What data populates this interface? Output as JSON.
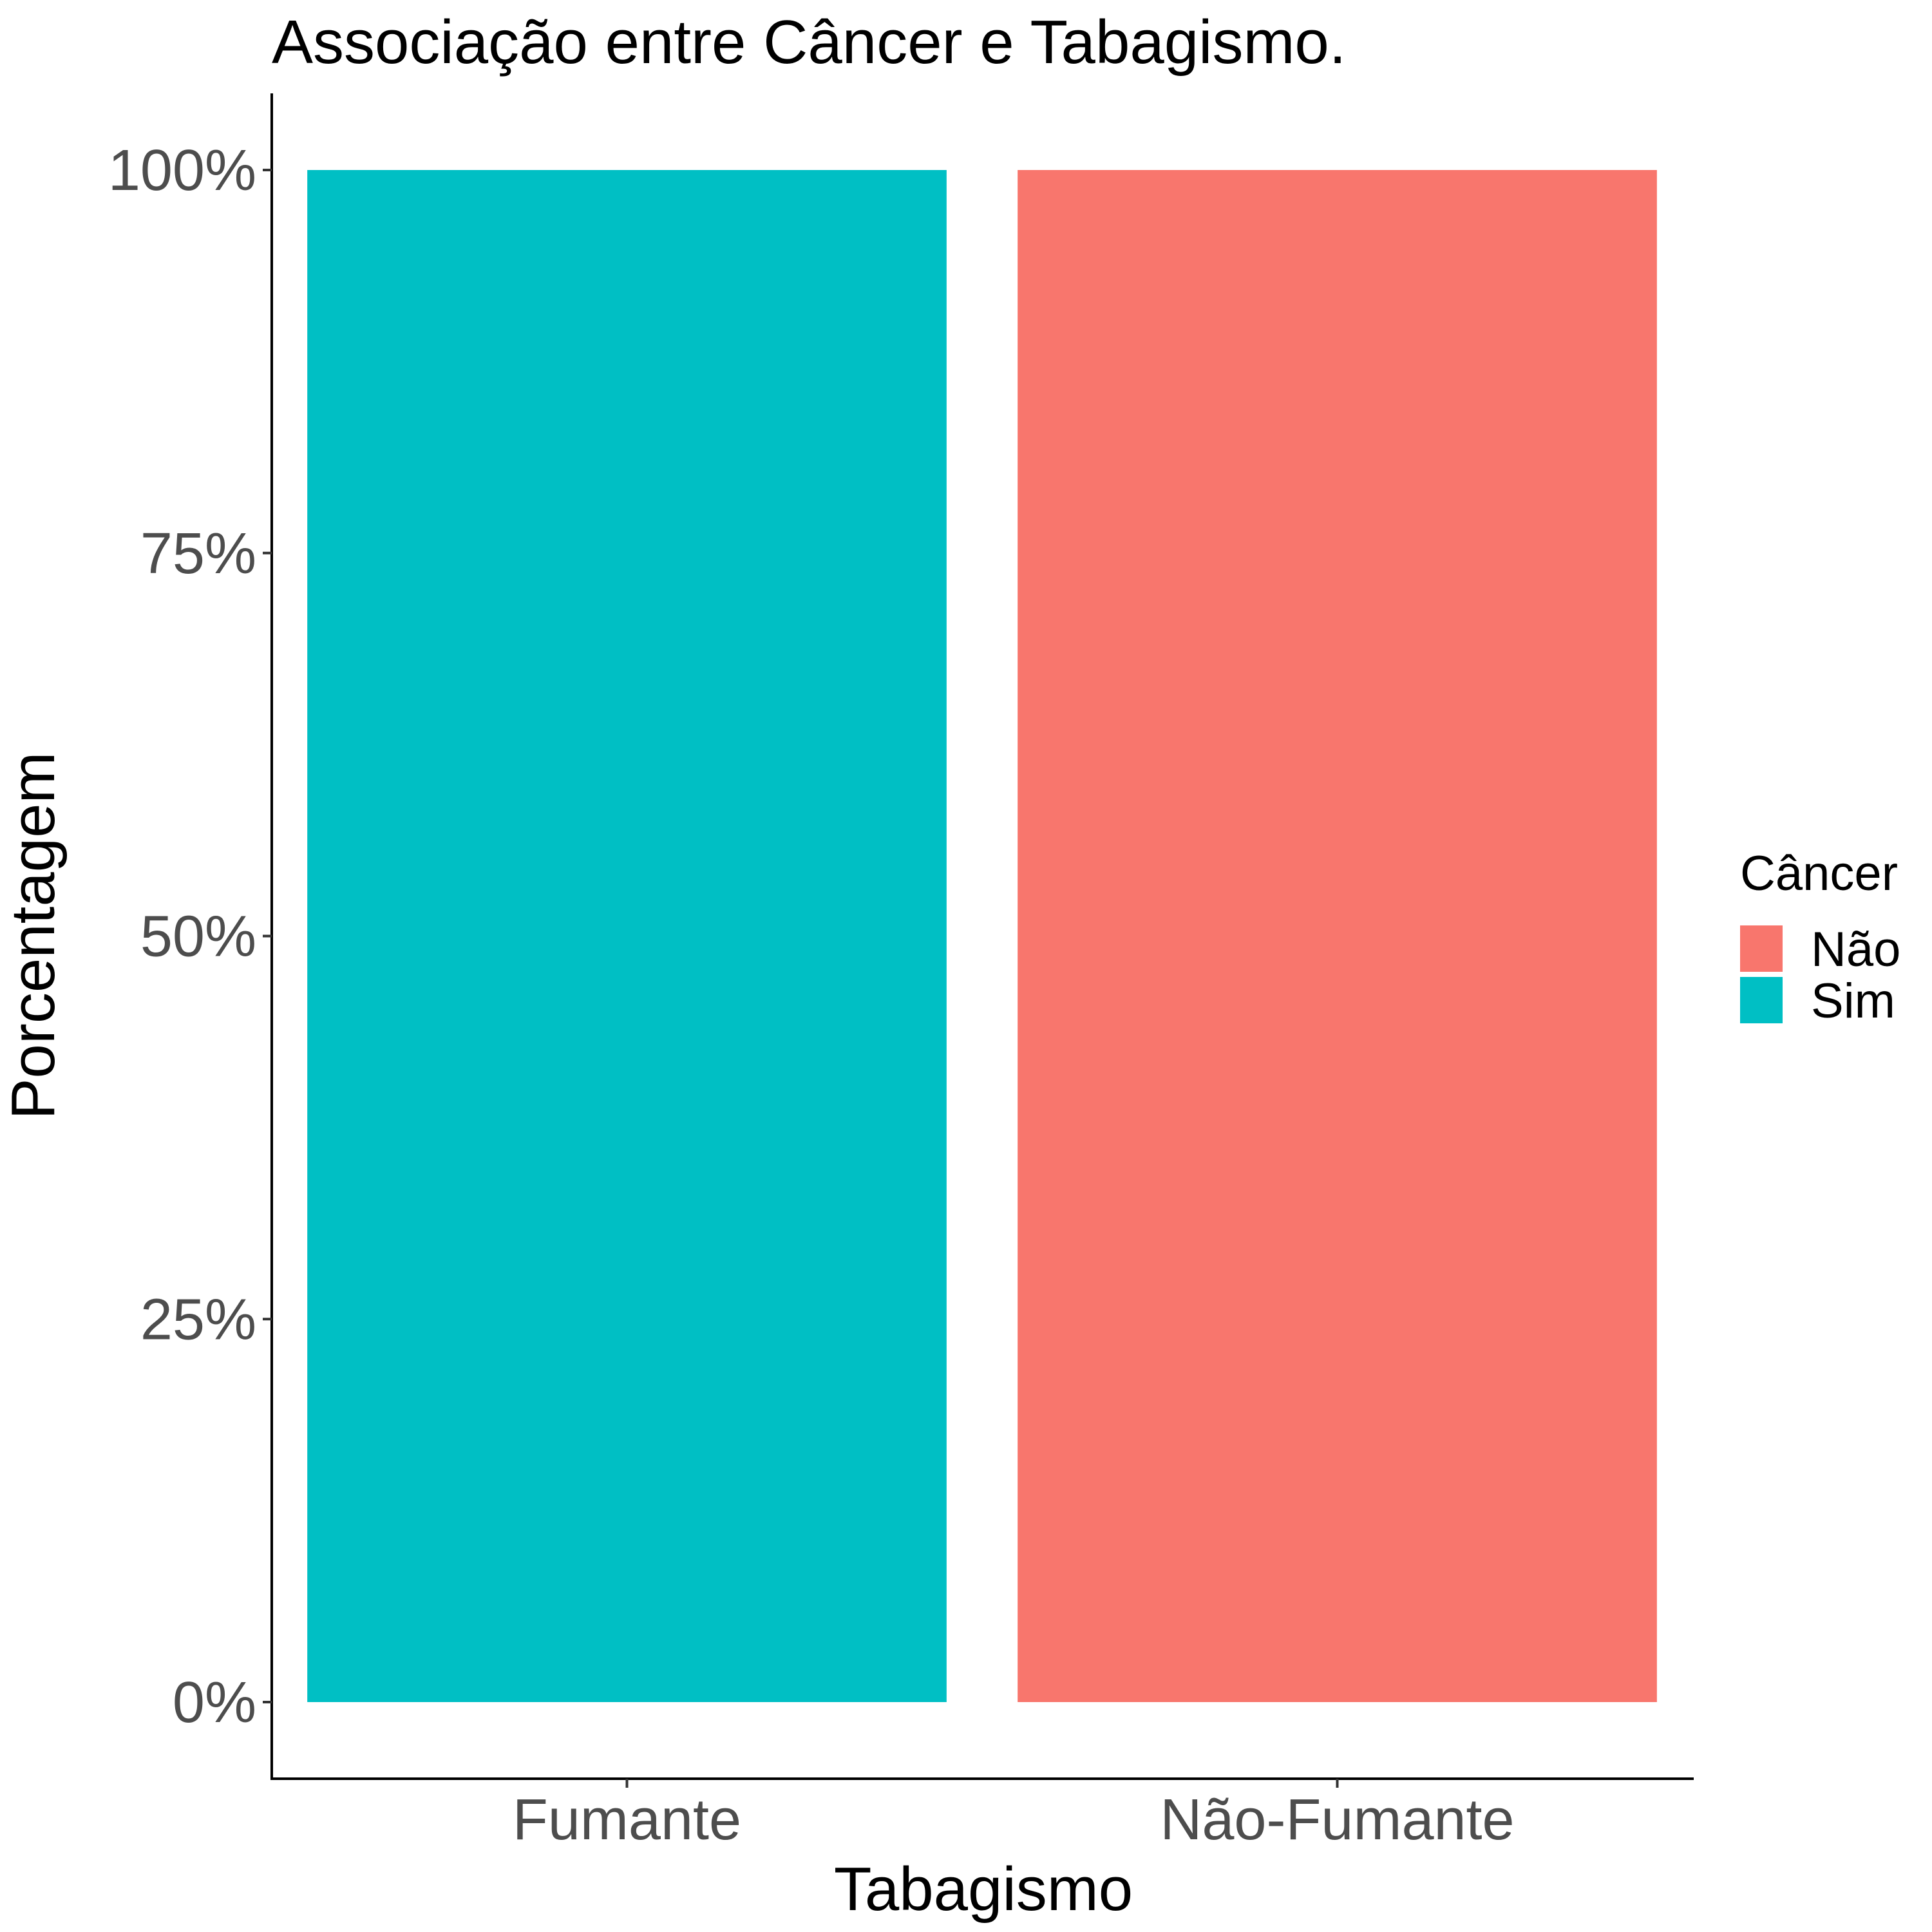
{
  "chart_data": {
    "type": "bar",
    "stacked": true,
    "title": "Associação entre Câncer e Tabagismo.",
    "xlabel": "Tabagismo",
    "ylabel": "Porcentagem",
    "categories": [
      "Fumante",
      "Não-Fumante"
    ],
    "yticks": [
      0,
      25,
      50,
      75,
      100
    ],
    "ytick_labels": [
      "0%",
      "25%",
      "50%",
      "75%",
      "100%"
    ],
    "ylim": [
      -5,
      105
    ],
    "grid": false,
    "legend": {
      "title": "Câncer",
      "position": "right",
      "entries": [
        "Não",
        "Sim"
      ]
    },
    "series": [
      {
        "name": "Não",
        "color": "#F8766D",
        "values": [
          0,
          100
        ]
      },
      {
        "name": "Sim",
        "color": "#00BFC4",
        "values": [
          100,
          0
        ]
      }
    ]
  }
}
